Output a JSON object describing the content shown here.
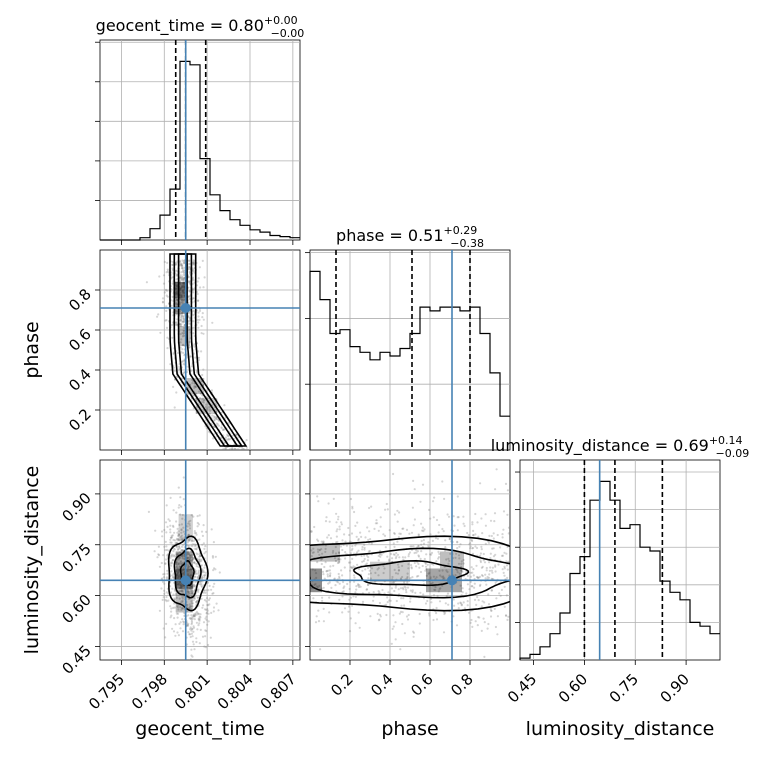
{
  "chart_data": {
    "type": "corner",
    "parameters": [
      "geocent_time",
      "phase",
      "luminosity_distance"
    ],
    "truths": {
      "geocent_time": 0.7995,
      "phase": 0.71,
      "luminosity_distance": 0.645
    },
    "titles": [
      {
        "param": "geocent_time",
        "text": "geocent_time = 0.80",
        "sup": "+0.00",
        "sub": "−0.00"
      },
      {
        "param": "phase",
        "text": "phase = 0.51",
        "sup": "+0.29",
        "sub": "−0.38"
      },
      {
        "param": "luminosity_distance",
        "text": "luminosity_distance = 0.69",
        "sup": "+0.14",
        "sub": "−0.09"
      }
    ],
    "axes": {
      "geocent_time": {
        "range": [
          0.7935,
          0.8075
        ],
        "ticks": [
          "0.795",
          "0.798",
          "0.801",
          "0.804",
          "0.807"
        ],
        "tick_values": [
          0.795,
          0.798,
          0.801,
          0.804,
          0.807
        ]
      },
      "phase": {
        "range": [
          0.0,
          1.0
        ],
        "ticks": [
          "0.2",
          "0.4",
          "0.6",
          "0.8"
        ],
        "tick_values": [
          0.2,
          0.4,
          0.6,
          0.8
        ]
      },
      "luminosity_distance": {
        "range": [
          0.41,
          1.0
        ],
        "ticks": [
          "0.45",
          "0.60",
          "0.75",
          "0.90"
        ],
        "tick_values": [
          0.45,
          0.6,
          0.75,
          0.9
        ]
      }
    },
    "quantiles": {
      "geocent_time": [
        0.7988,
        0.7995,
        0.8009
      ],
      "phase": [
        0.13,
        0.51,
        0.8
      ],
      "luminosity_distance": [
        0.6,
        0.69,
        0.83
      ]
    },
    "histograms": {
      "geocent_time": {
        "edges_start": 0.7935,
        "bin_width": 0.0007,
        "counts": [
          0,
          0,
          0,
          0,
          2,
          10,
          22,
          45,
          158,
          155,
          72,
          40,
          26,
          18,
          13,
          9,
          7,
          4,
          3,
          2
        ]
      },
      "phase": {
        "edges_start": 0.0,
        "bin_width": 0.05,
        "counts": [
          95,
          80,
          62,
          64,
          55,
          52,
          48,
          52,
          50,
          54,
          62,
          76,
          74,
          76,
          76,
          74,
          76,
          62,
          41,
          18
        ]
      },
      "luminosity_distance": {
        "edges_start": 0.41,
        "bin_width": 0.0295,
        "counts": [
          1,
          3,
          7,
          14,
          25,
          46,
          55,
          85,
          95,
          85,
          70,
          72,
          60,
          58,
          42,
          36,
          32,
          20,
          18,
          14
        ]
      }
    },
    "xlabel_bottom": [
      "geocent_time",
      "phase",
      "luminosity_distance"
    ],
    "ylabel_left": [
      "phase",
      "luminosity_distance"
    ]
  }
}
